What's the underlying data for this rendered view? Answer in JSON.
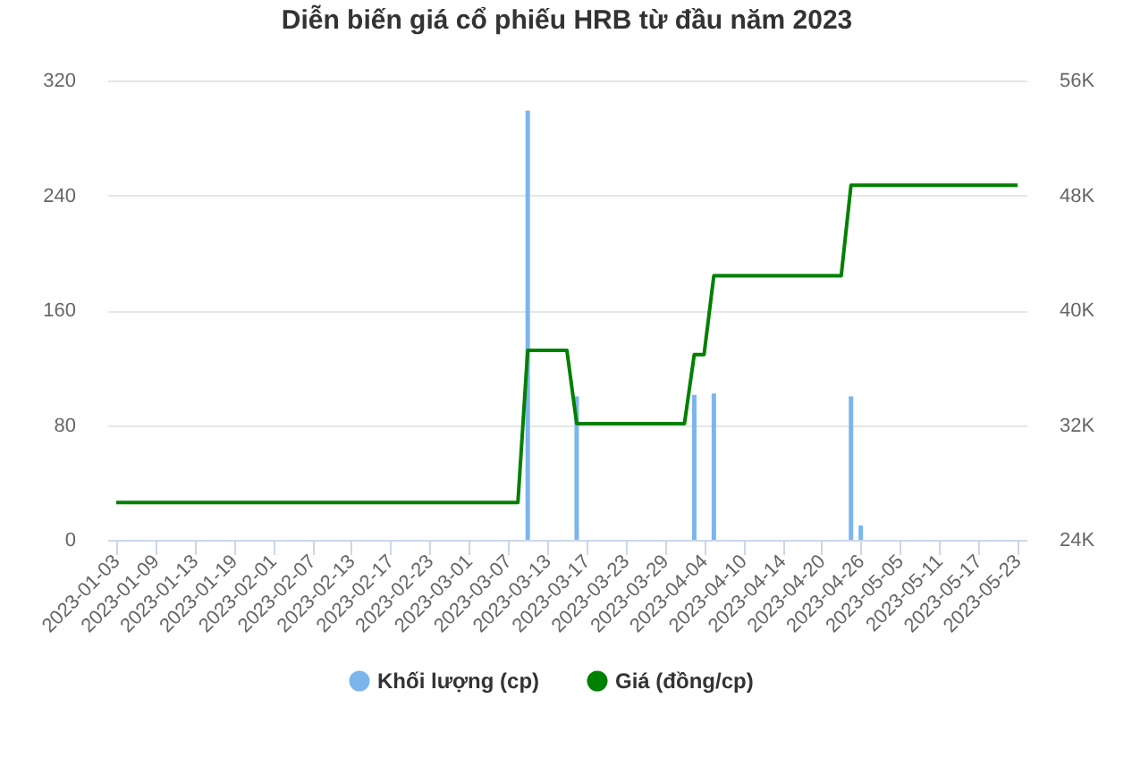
{
  "chart_data": {
    "type": "bar",
    "title": "Diễn biến giá cổ phiếu HRB từ đầu năm 2023",
    "categories": [
      "2023-01-03",
      null,
      null,
      null,
      "2023-01-09",
      null,
      null,
      null,
      "2023-01-13",
      null,
      null,
      null,
      "2023-01-19",
      null,
      null,
      null,
      "2023-02-01",
      null,
      null,
      null,
      "2023-02-07",
      null,
      null,
      null,
      "2023-02-13",
      null,
      null,
      null,
      "2023-02-17",
      null,
      null,
      null,
      "2023-02-23",
      null,
      null,
      null,
      "2023-03-01",
      null,
      null,
      null,
      "2023-03-07",
      null,
      null,
      null,
      "2023-03-13",
      null,
      null,
      null,
      "2023-03-17",
      null,
      null,
      null,
      "2023-03-23",
      null,
      null,
      null,
      "2023-03-29",
      null,
      null,
      null,
      "2023-04-04",
      null,
      null,
      null,
      "2023-04-10",
      null,
      null,
      null,
      "2023-04-14",
      null,
      null,
      null,
      "2023-04-20",
      null,
      null,
      null,
      "2023-04-26",
      null,
      null,
      null,
      "2023-05-05",
      null,
      null,
      null,
      "2023-05-11",
      null,
      null,
      null,
      "2023-05-17",
      null,
      null,
      null,
      "2023-05-23"
    ],
    "series": [
      {
        "name": "Khối lượng (cp)",
        "color": "#7cb5ec",
        "values": [
          0,
          0,
          0,
          0,
          0,
          0,
          0,
          0,
          0,
          0,
          0,
          0,
          0,
          0,
          0,
          0,
          0,
          0,
          0,
          0,
          0,
          0,
          0,
          0,
          0,
          0,
          0,
          0,
          0,
          0,
          0,
          0,
          0,
          0,
          0,
          0,
          0,
          0,
          0,
          0,
          0,
          0,
          299,
          0,
          0,
          0,
          0,
          100,
          0,
          0,
          0,
          0,
          0,
          0,
          0,
          0,
          0,
          0,
          0,
          101,
          0,
          102,
          0,
          0,
          0,
          0,
          0,
          0,
          0,
          0,
          0,
          0,
          0,
          0,
          0,
          100,
          10,
          0,
          0,
          0,
          0,
          0,
          0,
          0,
          0,
          0,
          0,
          0,
          0,
          0,
          0,
          0,
          0
        ]
      },
      {
        "name": "Giá (đồng/cp)",
        "type": "line",
        "axis": "y2",
        "color": "#008000",
        "values": [
          26600,
          26600,
          26600,
          26600,
          26600,
          26600,
          26600,
          26600,
          26600,
          26600,
          26600,
          26600,
          26600,
          26600,
          26600,
          26600,
          26600,
          26600,
          26600,
          26600,
          26600,
          26600,
          26600,
          26600,
          26600,
          26600,
          26600,
          26600,
          26600,
          26600,
          26600,
          26600,
          26600,
          26600,
          26600,
          26600,
          26600,
          26600,
          26600,
          26600,
          26600,
          26600,
          37200,
          37200,
          37200,
          37200,
          37200,
          32100,
          32100,
          32100,
          32100,
          32100,
          32100,
          32100,
          32100,
          32100,
          32100,
          32100,
          32100,
          36900,
          36900,
          42400,
          42400,
          42400,
          42400,
          42400,
          42400,
          42400,
          42400,
          42400,
          42400,
          42400,
          42400,
          42400,
          42400,
          48700,
          48700,
          48700,
          48700,
          48700,
          48700,
          48700,
          48700,
          48700,
          48700,
          48700,
          48700,
          48700,
          48700,
          48700,
          48700,
          48700,
          48700
        ]
      }
    ],
    "ylim": [
      0,
      320
    ],
    "yticks": [
      0,
      80,
      160,
      240,
      320
    ],
    "y2lim": [
      24000,
      56000
    ],
    "y2ticks": [
      {
        "value": 24000,
        "label": "24K"
      },
      {
        "value": 32000,
        "label": "32K"
      },
      {
        "value": 40000,
        "label": "40K"
      },
      {
        "value": 48000,
        "label": "48K"
      },
      {
        "value": 56000,
        "label": "56K"
      }
    ],
    "grid": "y",
    "legend": "bottom"
  }
}
